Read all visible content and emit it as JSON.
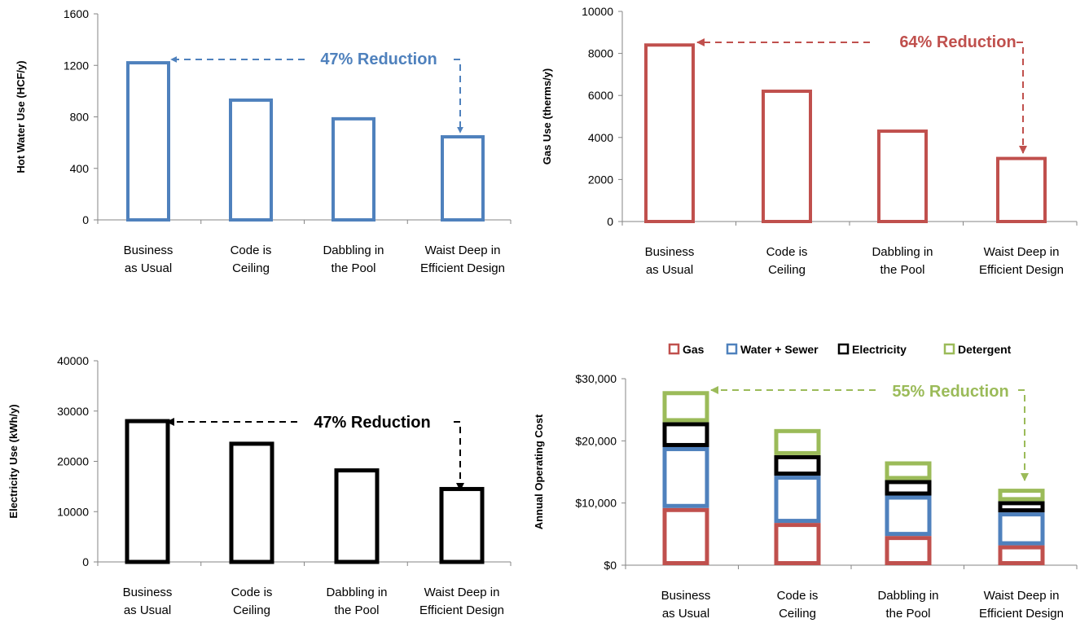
{
  "chart_data": [
    {
      "type": "bar",
      "categories": [
        [
          "Business",
          "as Usual"
        ],
        [
          "Code is",
          "Ceiling"
        ],
        [
          "Dabbling in",
          "the Pool"
        ],
        [
          "Waist Deep in",
          "Efficient Design"
        ]
      ],
      "values": [
        1220,
        930,
        785,
        645
      ],
      "ylabel": "Hot Water Use (HCF/y)",
      "ylim": [
        0,
        1600
      ],
      "yticks": [
        "0",
        "400",
        "800",
        "1200",
        "1600"
      ],
      "ytick_values": [
        0,
        400,
        800,
        1200,
        1600
      ],
      "color": "#4f81bd",
      "annotation": "47%  Reduction",
      "grid": false,
      "legend": "none"
    },
    {
      "type": "bar",
      "categories": [
        [
          "Business",
          "as Usual"
        ],
        [
          "Code is",
          "Ceiling"
        ],
        [
          "Dabbling in",
          "the Pool"
        ],
        [
          "Waist Deep in",
          "Efficient Design"
        ]
      ],
      "values": [
        8400,
        6200,
        4300,
        3000
      ],
      "ylabel": "Gas Use (therms/y)",
      "ylim": [
        0,
        10000
      ],
      "yticks": [
        "0",
        "2000",
        "4000",
        "6000",
        "8000",
        "10000"
      ],
      "ytick_values": [
        0,
        2000,
        4000,
        6000,
        8000,
        10000
      ],
      "color": "#c0504d",
      "annotation": "64%  Reduction",
      "grid": false,
      "legend": "none"
    },
    {
      "type": "bar",
      "categories": [
        [
          "Business",
          "as Usual"
        ],
        [
          "Code is",
          "Ceiling"
        ],
        [
          "Dabbling in",
          "the Pool"
        ],
        [
          "Waist Deep in",
          "Efficient Design"
        ]
      ],
      "values": [
        28000,
        23500,
        18200,
        14500
      ],
      "ylabel": "Electricity Use (kWh/y)",
      "ylim": [
        0,
        40000
      ],
      "yticks": [
        "0",
        "10000",
        "20000",
        "30000",
        "40000"
      ],
      "ytick_values": [
        0,
        10000,
        20000,
        30000,
        40000
      ],
      "color": "#000000",
      "annotation": "47%  Reduction",
      "grid": false,
      "legend": "none"
    },
    {
      "type": "bar",
      "stacked": true,
      "categories": [
        [
          "Business",
          "as Usual"
        ],
        [
          "Code is",
          "Ceiling"
        ],
        [
          "Dabbling in",
          "the Pool"
        ],
        [
          "Waist Deep in",
          "Efficient Design"
        ]
      ],
      "series": [
        {
          "name": "Gas",
          "values": [
            9200,
            6800,
            4700,
            3200
          ],
          "color": "#c0504d"
        },
        {
          "name": "Water + Sewer",
          "values": [
            9800,
            7600,
            6500,
            5300
          ],
          "color": "#4f81bd"
        },
        {
          "name": "Electricity",
          "values": [
            4000,
            3300,
            2500,
            1800
          ],
          "color": "#000000"
        },
        {
          "name": "Detergent",
          "values": [
            5000,
            4200,
            3000,
            2000
          ],
          "color": "#9bbb59"
        }
      ],
      "ylabel": "Annual Operating Cost",
      "ylim": [
        0,
        30000
      ],
      "yticks": [
        "$0",
        "$10,000",
        "$20,000",
        "$30,000"
      ],
      "ytick_values": [
        0,
        10000,
        20000,
        30000
      ],
      "annotation": "55%  Reduction",
      "annotation_color": "#9bbb59",
      "grid": false,
      "legend": "top"
    }
  ]
}
